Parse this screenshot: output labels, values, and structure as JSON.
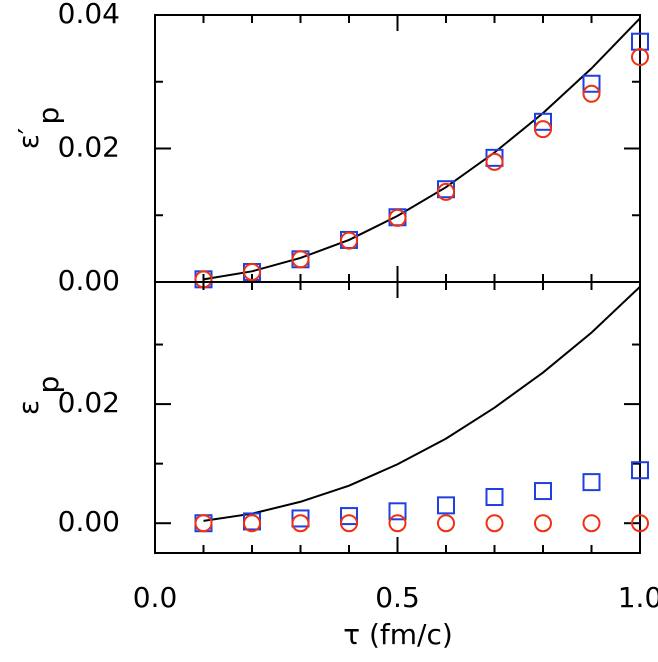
{
  "chart_data": [
    {
      "type": "scatter",
      "ylabel": "ε′",
      "ylabel_sub": "p",
      "x": [
        0.1,
        0.2,
        0.3,
        0.4,
        0.5,
        0.6,
        0.7,
        0.8,
        0.9,
        1.0
      ],
      "series": [
        {
          "marker": "line",
          "color": "#000000",
          "values": [
            0.0004,
            0.0016,
            0.0036,
            0.0063,
            0.0099,
            0.0142,
            0.0194,
            0.0253,
            0.032,
            0.0395
          ]
        },
        {
          "marker": "square",
          "color": "#1f3fe0",
          "values": [
            0.0004,
            0.0015,
            0.0034,
            0.0063,
            0.0097,
            0.0139,
            0.0186,
            0.024,
            0.0297,
            0.036
          ]
        },
        {
          "marker": "circle",
          "color": "#f03010",
          "values": [
            0.0004,
            0.0015,
            0.0034,
            0.0062,
            0.0096,
            0.0135,
            0.018,
            0.0229,
            0.0282,
            0.0337
          ]
        }
      ],
      "xlim": [
        0,
        1
      ],
      "xticks": [
        {
          "value": 0,
          "label": "0.0"
        },
        0.5,
        {
          "value": 1,
          "label": "1.0"
        }
      ],
      "xminor": [
        0.1,
        0.2,
        0.3,
        0.4,
        0.6,
        0.7,
        0.8,
        0.9
      ],
      "ylim": [
        0,
        0.04
      ],
      "yticks": [
        {
          "value": 0,
          "label": "0.00"
        },
        0.02,
        0.04
      ],
      "yminor": [
        0.01,
        0.03
      ]
    },
    {
      "type": "scatter",
      "ylabel": "ε",
      "ylabel_sub": "p",
      "xlabel": "τ  (fm/c)",
      "x": [
        0.1,
        0.2,
        0.3,
        0.4,
        0.5,
        0.6,
        0.7,
        0.8,
        0.9,
        1.0
      ],
      "series": [
        {
          "marker": "line",
          "color": "#000000",
          "values": [
            0.0004,
            0.0016,
            0.0036,
            0.0063,
            0.0099,
            0.0142,
            0.0194,
            0.0253,
            0.032,
            0.0397
          ]
        },
        {
          "marker": "square",
          "color": "#1f3fe0",
          "values": [
            0,
            0.0003,
            0.0008,
            0.0012,
            0.002,
            0.003,
            0.0044,
            0.0054,
            0.0069,
            0.0089
          ]
        },
        {
          "marker": "circle",
          "color": "#f03010",
          "values": [
            0,
            0,
            0,
            0,
            0,
            0,
            0,
            0,
            0,
            0
          ]
        }
      ],
      "xlim": [
        0,
        1
      ],
      "xticks": [
        {
          "value": 0,
          "label": "0.0"
        },
        0.5,
        {
          "value": 1,
          "label": "1.0"
        }
      ],
      "xminor": [
        0.1,
        0.2,
        0.3,
        0.4,
        0.6,
        0.7,
        0.8,
        0.9
      ],
      "ylim": [
        -0.005,
        0.0405
      ],
      "yticks": [
        {
          "value": 0,
          "label": "0.00"
        },
        0.02
      ],
      "yminor": [
        0.01,
        0.03
      ]
    }
  ]
}
